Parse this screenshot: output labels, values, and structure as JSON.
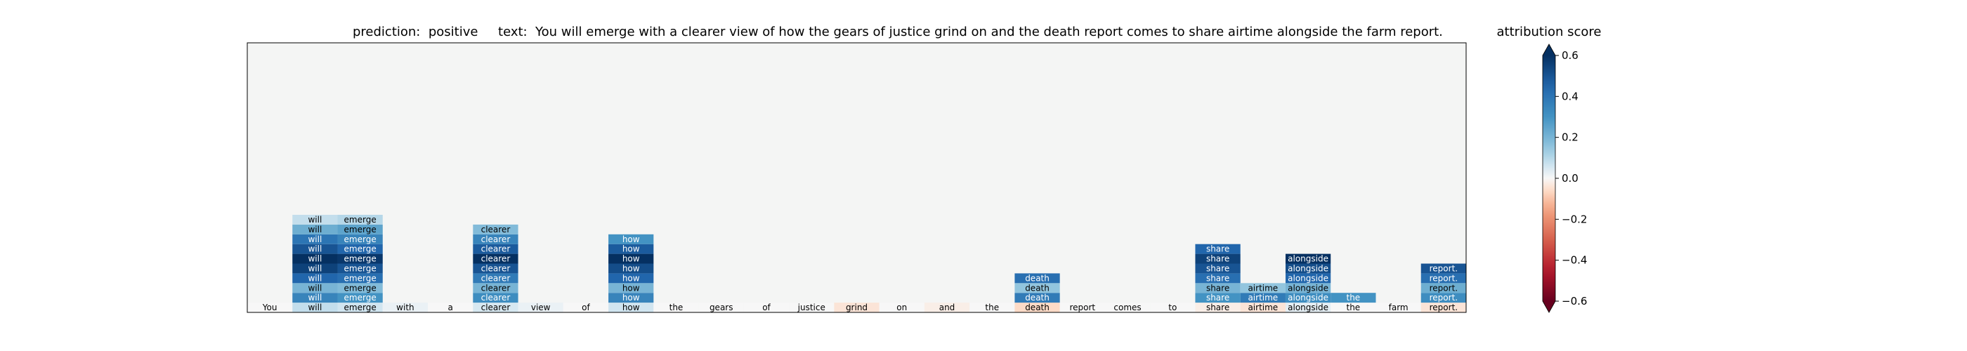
{
  "chart_data": {
    "type": "heatmap",
    "title": "prediction:  positive     text:  You will emerge with a clearer view of how the gears of justice grind on and the death report comes to share airtime alongside the farm report.",
    "prediction_label": "prediction:",
    "prediction_value": "positive",
    "text_label": "text:",
    "tokens": [
      "You",
      "will",
      "emerge",
      "with",
      "a",
      "clearer",
      "view",
      "of",
      "how",
      "the",
      "gears",
      "of",
      "justice",
      "grind",
      "on",
      "and",
      "the",
      "death",
      "report",
      "comes",
      "to",
      "share",
      "airtime",
      "alongside",
      "the",
      "farm",
      "report."
    ],
    "base_scores": [
      0.0,
      0.08,
      0.06,
      0.02,
      0.0,
      0.05,
      0.02,
      0.0,
      0.06,
      0.0,
      0.0,
      0.0,
      0.0,
      -0.04,
      0.0,
      -0.02,
      0.0,
      -0.06,
      0.0,
      0.0,
      0.0,
      -0.02,
      -0.04,
      0.03,
      0.0,
      0.0,
      -0.04
    ],
    "stacks": [
      {
        "token_index": 1,
        "scores": [
          0.35,
          0.2,
          0.45,
          0.55,
          0.6,
          0.5,
          0.4,
          0.22,
          0.08
        ]
      },
      {
        "token_index": 2,
        "scores": [
          0.3,
          0.18,
          0.42,
          0.5,
          0.58,
          0.45,
          0.35,
          0.25,
          0.1
        ]
      },
      {
        "token_index": 5,
        "scores": [
          0.32,
          0.2,
          0.38,
          0.5,
          0.6,
          0.48,
          0.35,
          0.18
        ]
      },
      {
        "token_index": 8,
        "scores": [
          0.35,
          0.2,
          0.45,
          0.52,
          0.6,
          0.48,
          0.3
        ]
      },
      {
        "token_index": 17,
        "scores": [
          0.38,
          0.15,
          0.42
        ]
      },
      {
        "token_index": 21,
        "scores": [
          0.3,
          0.2,
          0.42,
          0.5,
          0.55,
          0.45
        ]
      },
      {
        "token_index": 22,
        "scores": [
          0.38,
          0.15
        ]
      },
      {
        "token_index": 23,
        "scores": [
          0.32,
          0.2,
          0.45,
          0.52,
          0.6
        ]
      },
      {
        "token_index": 24,
        "scores": [
          0.3
        ]
      },
      {
        "token_index": 26,
        "scores": [
          0.32,
          0.22,
          0.42,
          0.5
        ]
      }
    ],
    "colorbar": {
      "label": "attribution score",
      "range": [
        -0.6,
        0.6
      ],
      "ticks": [
        0.6,
        0.4,
        0.2,
        0.0,
        -0.2,
        -0.4,
        -0.6
      ],
      "tick_labels": [
        "0.6",
        "0.4",
        "0.2",
        "0.0",
        "−0.2",
        "−0.4",
        "−0.6"
      ],
      "colormap": "RdBu"
    }
  }
}
